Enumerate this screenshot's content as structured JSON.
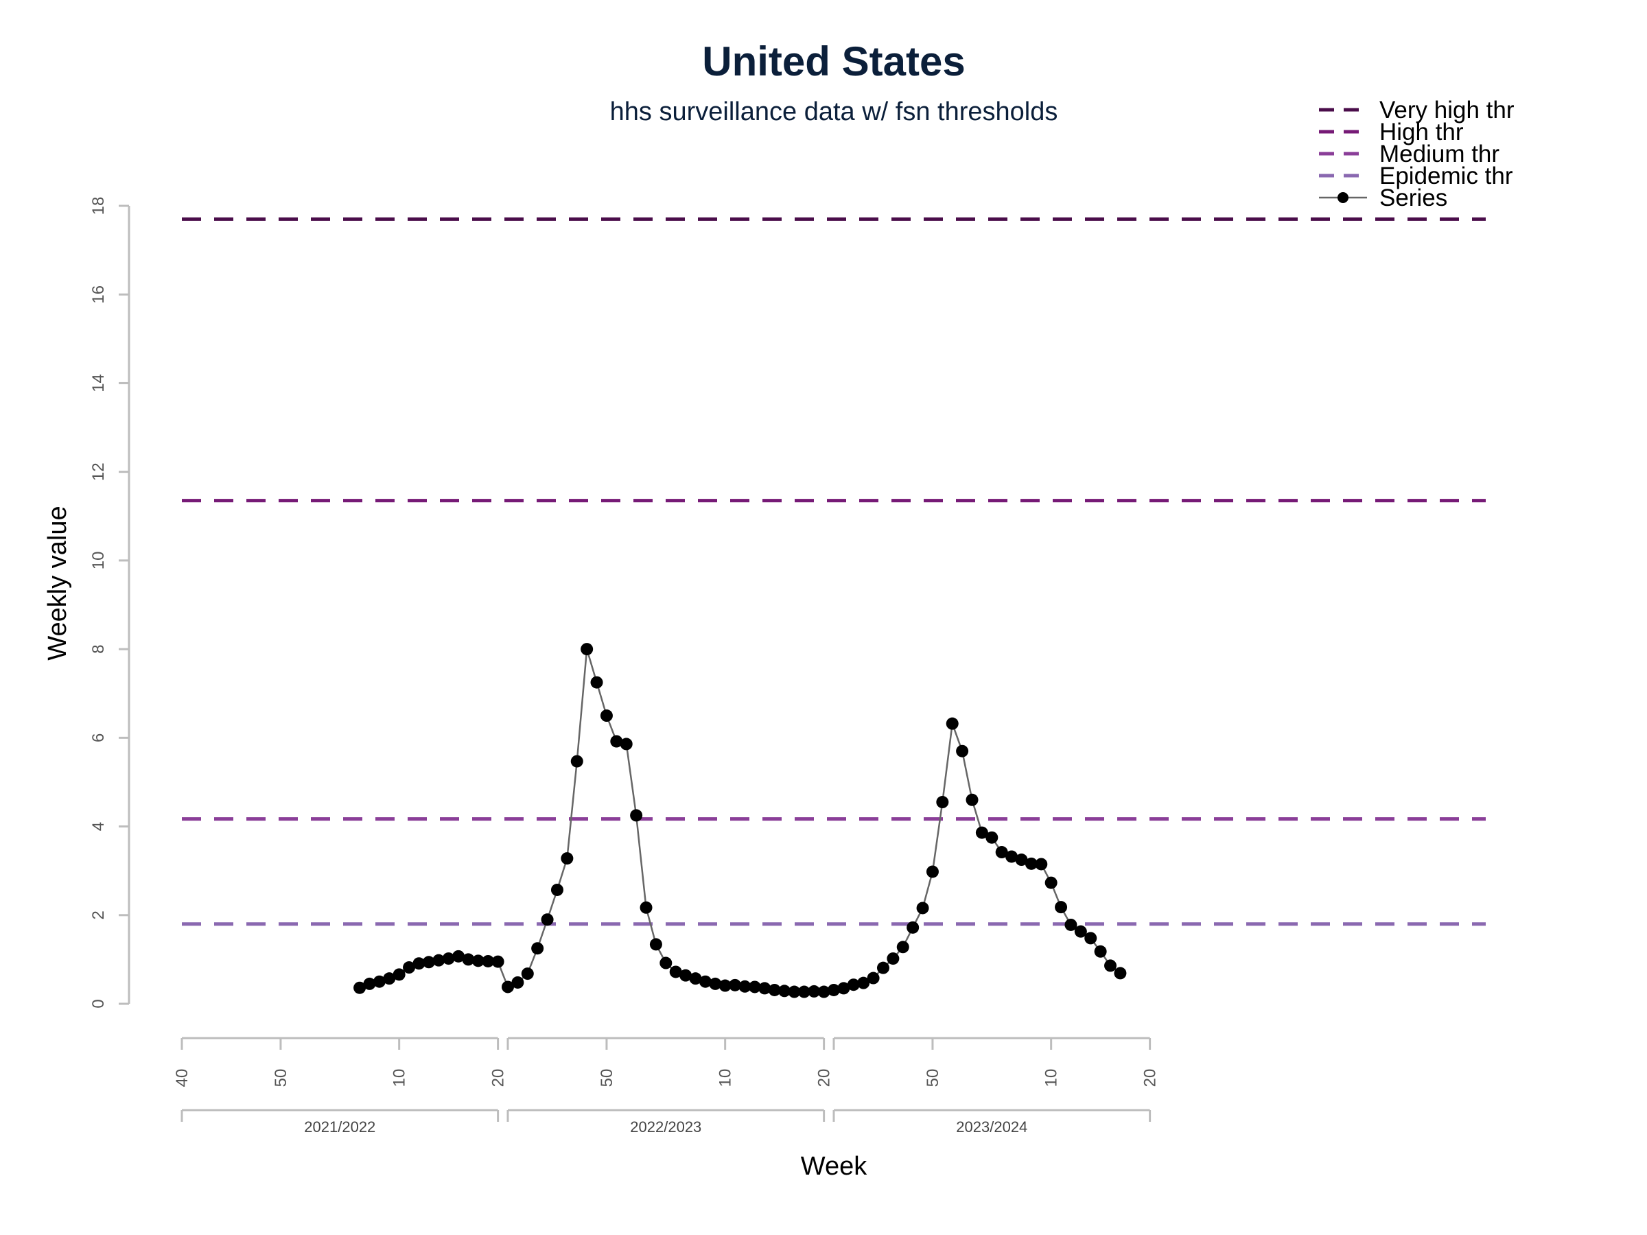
{
  "chart_data": {
    "type": "line",
    "title": "United States",
    "subtitle": "hhs surveillance data w/ fsn thresholds",
    "xlabel": "Week",
    "ylabel": "Weekly value",
    "ylim": [
      0,
      18
    ],
    "yticks": [
      0,
      2,
      4,
      6,
      8,
      10,
      12,
      14,
      16,
      18
    ],
    "x_index_range": [
      0,
      132
    ],
    "week_ticks": [
      {
        "i": 0,
        "label": "40"
      },
      {
        "i": 10,
        "label": "50"
      },
      {
        "i": 22,
        "label": "10"
      },
      {
        "i": 32,
        "label": "20"
      },
      {
        "i": 33,
        "label": ""
      },
      {
        "i": 43,
        "label": "50"
      },
      {
        "i": 55,
        "label": "10"
      },
      {
        "i": 65,
        "label": "20"
      },
      {
        "i": 66,
        "label": ""
      },
      {
        "i": 76,
        "label": "50"
      },
      {
        "i": 88,
        "label": "10"
      },
      {
        "i": 98,
        "label": "20"
      }
    ],
    "seasons": [
      {
        "label": "2021/2022",
        "start": 0,
        "end": 32
      },
      {
        "label": "2022/2023",
        "start": 33,
        "end": 65
      },
      {
        "label": "2023/2024",
        "start": 66,
        "end": 98
      }
    ],
    "thresholds": [
      {
        "name": "Very high thr",
        "value": 17.7,
        "color": "#4a0d4a"
      },
      {
        "name": "High thr",
        "value": 11.35,
        "color": "#761a76"
      },
      {
        "name": "Medium thr",
        "value": 4.17,
        "color": "#8a3e98"
      },
      {
        "name": "Epidemic thr",
        "value": 1.8,
        "color": "#8a68b0"
      }
    ],
    "series": [
      {
        "name": "Series",
        "color": "#000000",
        "line_color": "#666666",
        "start_index": 18,
        "values": [
          0.36,
          0.45,
          0.5,
          0.57,
          0.66,
          0.82,
          0.91,
          0.94,
          0.98,
          1.02,
          1.07,
          1.0,
          0.97,
          0.96,
          0.95,
          0.38,
          0.48,
          0.68,
          1.25,
          1.9,
          2.57,
          3.28,
          5.47,
          8.0,
          7.25,
          6.5,
          5.92,
          5.86,
          4.25,
          2.17,
          1.34,
          0.92,
          0.72,
          0.64,
          0.57,
          0.5,
          0.45,
          0.41,
          0.42,
          0.39,
          0.38,
          0.35,
          0.31,
          0.29,
          0.27,
          0.27,
          0.28,
          0.27,
          0.31,
          0.35,
          0.43,
          0.47,
          0.58,
          0.81,
          1.02,
          1.28,
          1.72,
          2.16,
          2.98,
          4.55,
          6.32,
          5.7,
          4.6,
          3.86,
          3.75,
          3.42,
          3.32,
          3.25,
          3.16,
          3.15,
          2.73,
          2.18,
          1.78,
          1.63,
          1.48,
          1.18,
          0.86,
          0.69
        ]
      }
    ],
    "legend": {
      "position": "top-right",
      "entries": [
        "Very high thr",
        "High thr",
        "Medium thr",
        "Epidemic thr",
        "Series"
      ]
    },
    "grid": false
  }
}
